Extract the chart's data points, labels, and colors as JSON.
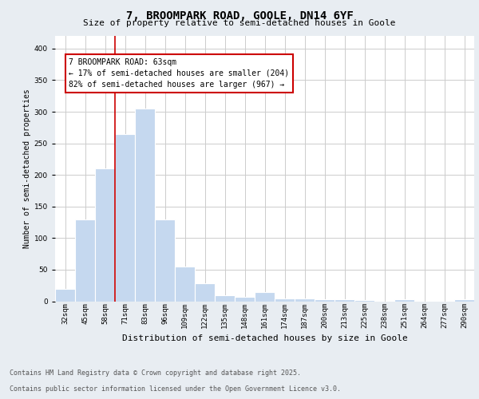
{
  "title_line1": "7, BROOMPARK ROAD, GOOLE, DN14 6YF",
  "title_line2": "Size of property relative to semi-detached houses in Goole",
  "xlabel": "Distribution of semi-detached houses by size in Goole",
  "ylabel": "Number of semi-detached properties",
  "categories": [
    "32sqm",
    "45sqm",
    "58sqm",
    "71sqm",
    "83sqm",
    "96sqm",
    "109sqm",
    "122sqm",
    "135sqm",
    "148sqm",
    "161sqm",
    "174sqm",
    "187sqm",
    "200sqm",
    "213sqm",
    "225sqm",
    "238sqm",
    "251sqm",
    "264sqm",
    "277sqm",
    "290sqm"
  ],
  "values": [
    20,
    130,
    210,
    265,
    305,
    130,
    55,
    28,
    10,
    7,
    15,
    4,
    4,
    3,
    3,
    2,
    0,
    3,
    0,
    0,
    3
  ],
  "bar_color": "#c5d8ef",
  "bar_edgecolor": "#ffffff",
  "vline_color": "#cc0000",
  "vline_x_index": 2.5,
  "annotation_title": "7 BROOMPARK ROAD: 63sqm",
  "annotation_line2": "← 17% of semi-detached houses are smaller (204)",
  "annotation_line3": "82% of semi-detached houses are larger (967) →",
  "annotation_box_edgecolor": "#cc0000",
  "annotation_box_facecolor": "#ffffff",
  "ylim": [
    0,
    420
  ],
  "yticks": [
    0,
    50,
    100,
    150,
    200,
    250,
    300,
    350,
    400
  ],
  "footer_line1": "Contains HM Land Registry data © Crown copyright and database right 2025.",
  "footer_line2": "Contains public sector information licensed under the Open Government Licence v3.0.",
  "background_color": "#e8edf2",
  "plot_bg_color": "#ffffff",
  "grid_color": "#cccccc",
  "title1_fontsize": 10,
  "title2_fontsize": 8,
  "xlabel_fontsize": 8,
  "ylabel_fontsize": 7,
  "tick_fontsize": 6.5,
  "annotation_fontsize": 7,
  "footer_fontsize": 6
}
